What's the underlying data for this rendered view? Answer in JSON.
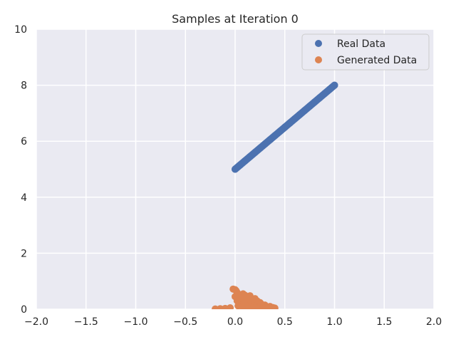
{
  "chart_data": {
    "type": "scatter",
    "title": "Samples at Iteration 0",
    "xlabel": "",
    "ylabel": "",
    "xlim": [
      -2.0,
      2.0
    ],
    "ylim": [
      0,
      10
    ],
    "xticks": [
      "−2.0",
      "−1.5",
      "−1.0",
      "−0.5",
      "0.0",
      "0.5",
      "1.0",
      "1.5",
      "2.0"
    ],
    "xtick_values": [
      -2.0,
      -1.5,
      -1.0,
      -0.5,
      0.0,
      0.5,
      1.0,
      1.5,
      2.0
    ],
    "yticks": [
      "0",
      "2",
      "4",
      "6",
      "8",
      "10"
    ],
    "ytick_values": [
      0,
      2,
      4,
      6,
      8,
      10
    ],
    "grid": true,
    "background": "#eaeaf2",
    "legend_position": "top-right",
    "series": [
      {
        "name": "Real Data",
        "color": "#4c72b0",
        "points": [
          [
            0.0,
            5.0
          ],
          [
            0.05,
            5.15
          ],
          [
            0.1,
            5.3
          ],
          [
            0.15,
            5.45
          ],
          [
            0.2,
            5.6
          ],
          [
            0.25,
            5.75
          ],
          [
            0.3,
            5.9
          ],
          [
            0.35,
            6.05
          ],
          [
            0.4,
            6.2
          ],
          [
            0.45,
            6.35
          ],
          [
            0.5,
            6.5
          ],
          [
            0.55,
            6.65
          ],
          [
            0.6,
            6.8
          ],
          [
            0.65,
            6.95
          ],
          [
            0.7,
            7.1
          ],
          [
            0.75,
            7.25
          ],
          [
            0.8,
            7.4
          ],
          [
            0.85,
            7.55
          ],
          [
            0.9,
            7.7
          ],
          [
            0.95,
            7.85
          ],
          [
            1.0,
            8.0
          ]
        ]
      },
      {
        "name": "Generated Data",
        "color": "#dd8452",
        "points": [
          [
            -0.02,
            0.72
          ],
          [
            0.0,
            0.7
          ],
          [
            0.01,
            0.66
          ],
          [
            0.02,
            0.6
          ],
          [
            0.03,
            0.52
          ],
          [
            0.05,
            0.45
          ],
          [
            0.04,
            0.38
          ],
          [
            0.06,
            0.3
          ],
          [
            0.08,
            0.55
          ],
          [
            0.1,
            0.5
          ],
          [
            0.12,
            0.42
          ],
          [
            0.14,
            0.35
          ],
          [
            0.15,
            0.48
          ],
          [
            0.17,
            0.28
          ],
          [
            0.18,
            0.22
          ],
          [
            0.2,
            0.38
          ],
          [
            0.22,
            0.3
          ],
          [
            0.23,
            0.18
          ],
          [
            0.25,
            0.24
          ],
          [
            0.27,
            0.12
          ],
          [
            0.3,
            0.15
          ],
          [
            0.32,
            0.08
          ],
          [
            0.35,
            0.1
          ],
          [
            0.38,
            0.06
          ],
          [
            0.4,
            0.04
          ],
          [
            0.0,
            0.45
          ],
          [
            0.02,
            0.3
          ],
          [
            0.05,
            0.2
          ],
          [
            0.07,
            0.15
          ],
          [
            0.1,
            0.25
          ],
          [
            0.13,
            0.2
          ],
          [
            0.16,
            0.1
          ],
          [
            0.19,
            0.12
          ],
          [
            0.21,
            0.08
          ],
          [
            0.24,
            0.06
          ],
          [
            -0.05,
            0.05
          ],
          [
            -0.1,
            0.03
          ],
          [
            -0.15,
            0.02
          ],
          [
            -0.2,
            0.01
          ],
          [
            0.28,
            0.04
          ],
          [
            0.33,
            0.03
          ],
          [
            0.36,
            0.02
          ],
          [
            0.12,
            0.08
          ],
          [
            0.08,
            0.05
          ],
          [
            0.03,
            0.12
          ],
          [
            0.11,
            0.35
          ],
          [
            0.06,
            0.4
          ],
          [
            0.09,
            0.18
          ],
          [
            0.26,
            0.2
          ],
          [
            0.2,
            0.05
          ]
        ]
      }
    ]
  }
}
